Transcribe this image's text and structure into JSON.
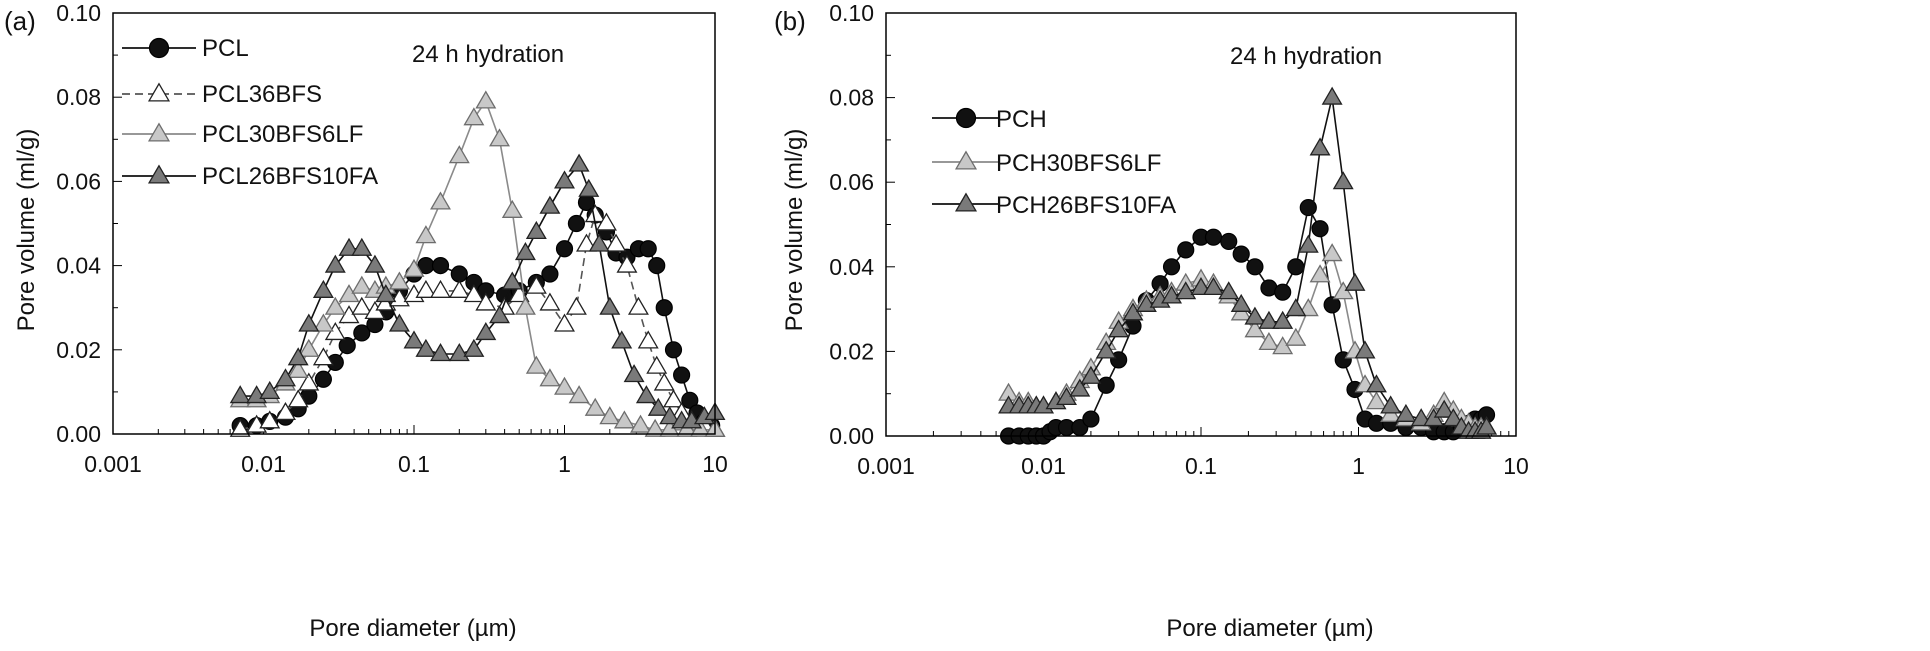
{
  "chart_data": [
    {
      "panel_label": "(a)",
      "type": "line",
      "xlabel": "Pore diameter (µm)",
      "ylabel": "Pore volume (ml/g)",
      "xscale": "log",
      "xlim": [
        0.001,
        10
      ],
      "ylim": [
        0,
        0.1
      ],
      "xticks": [
        "0.001",
        "0.01",
        "0.1",
        "1",
        "10"
      ],
      "yticks": [
        "0.00",
        "0.02",
        "0.04",
        "0.06",
        "0.08",
        "0.10"
      ],
      "annotation": "24 h hydration",
      "legend_position": "top-left",
      "series": [
        {
          "name": "PCL",
          "marker": "circle",
          "line": "solid",
          "line_color": "#111111",
          "fill": "#111111",
          "x": [
            0.007,
            0.009,
            0.011,
            0.014,
            0.017,
            0.02,
            0.025,
            0.03,
            0.036,
            0.045,
            0.055,
            0.065,
            0.08,
            0.1,
            0.12,
            0.15,
            0.2,
            0.25,
            0.3,
            0.4,
            0.5,
            0.65,
            0.8,
            1.0,
            1.2,
            1.4,
            1.6,
            1.9,
            2.2,
            2.6,
            3.1,
            3.6,
            4.1,
            4.6,
            5.3,
            6.0,
            6.8,
            7.6,
            8.5,
            9.5
          ],
          "y": [
            0.002,
            0.002,
            0.003,
            0.004,
            0.006,
            0.009,
            0.013,
            0.017,
            0.021,
            0.024,
            0.026,
            0.029,
            0.034,
            0.038,
            0.04,
            0.04,
            0.038,
            0.036,
            0.034,
            0.033,
            0.034,
            0.036,
            0.038,
            0.044,
            0.05,
            0.055,
            0.052,
            0.048,
            0.043,
            0.042,
            0.044,
            0.044,
            0.04,
            0.03,
            0.02,
            0.014,
            0.008,
            0.005,
            0.003,
            0.002
          ]
        },
        {
          "name": "PCL36BFS",
          "marker": "triangle",
          "line": "dashed",
          "line_color": "#555555",
          "fill": "#ffffff",
          "x": [
            0.007,
            0.009,
            0.011,
            0.014,
            0.017,
            0.02,
            0.025,
            0.03,
            0.037,
            0.045,
            0.055,
            0.065,
            0.08,
            0.1,
            0.12,
            0.15,
            0.2,
            0.25,
            0.3,
            0.4,
            0.5,
            0.65,
            0.8,
            1.0,
            1.2,
            1.4,
            1.6,
            1.9,
            2.2,
            2.6,
            3.1,
            3.6,
            4.1,
            4.6,
            5.3,
            6.0,
            7.0,
            8.5,
            10.0
          ],
          "y": [
            0.001,
            0.002,
            0.003,
            0.005,
            0.008,
            0.012,
            0.018,
            0.024,
            0.028,
            0.03,
            0.029,
            0.031,
            0.032,
            0.033,
            0.034,
            0.034,
            0.034,
            0.033,
            0.031,
            0.03,
            0.033,
            0.035,
            0.031,
            0.026,
            0.03,
            0.045,
            0.052,
            0.05,
            0.045,
            0.04,
            0.03,
            0.022,
            0.016,
            0.012,
            0.008,
            0.005,
            0.003,
            0.002,
            0.001
          ]
        },
        {
          "name": "PCL30BFS6LF",
          "marker": "triangle",
          "line": "solid",
          "line_color": "#8a8a8a",
          "fill": "#c8c8c8",
          "x": [
            0.007,
            0.009,
            0.011,
            0.014,
            0.017,
            0.02,
            0.025,
            0.03,
            0.037,
            0.045,
            0.055,
            0.065,
            0.08,
            0.1,
            0.12,
            0.15,
            0.2,
            0.25,
            0.3,
            0.37,
            0.45,
            0.55,
            0.65,
            0.8,
            1.0,
            1.25,
            1.6,
            2.0,
            2.5,
            3.2,
            4.0,
            5.0,
            6.5,
            8.0,
            10.0
          ],
          "y": [
            0.008,
            0.008,
            0.009,
            0.012,
            0.015,
            0.02,
            0.026,
            0.03,
            0.033,
            0.035,
            0.034,
            0.035,
            0.036,
            0.039,
            0.047,
            0.055,
            0.066,
            0.075,
            0.079,
            0.07,
            0.053,
            0.03,
            0.016,
            0.013,
            0.011,
            0.009,
            0.006,
            0.004,
            0.003,
            0.002,
            0.001,
            0.001,
            0.001,
            0.001,
            0.001
          ]
        },
        {
          "name": "PCL26BFS10FA",
          "marker": "triangle",
          "line": "solid",
          "line_color": "#111111",
          "fill": "#7a7a7a",
          "x": [
            0.007,
            0.009,
            0.011,
            0.014,
            0.017,
            0.02,
            0.025,
            0.03,
            0.037,
            0.045,
            0.055,
            0.065,
            0.08,
            0.1,
            0.12,
            0.15,
            0.2,
            0.25,
            0.3,
            0.37,
            0.45,
            0.55,
            0.65,
            0.8,
            1.0,
            1.25,
            1.45,
            1.7,
            2.0,
            2.4,
            2.9,
            3.5,
            4.2,
            5.0,
            6.0,
            7.0,
            8.5,
            10.0
          ],
          "y": [
            0.009,
            0.009,
            0.01,
            0.013,
            0.018,
            0.026,
            0.034,
            0.04,
            0.044,
            0.044,
            0.04,
            0.033,
            0.026,
            0.022,
            0.02,
            0.019,
            0.019,
            0.02,
            0.024,
            0.028,
            0.036,
            0.043,
            0.048,
            0.054,
            0.06,
            0.064,
            0.058,
            0.045,
            0.03,
            0.022,
            0.014,
            0.009,
            0.006,
            0.004,
            0.003,
            0.003,
            0.004,
            0.005
          ]
        }
      ]
    },
    {
      "panel_label": "(b)",
      "type": "line",
      "xlabel": "Pore diameter (µm)",
      "ylabel": "Pore volume (ml/g)",
      "xscale": "log",
      "xlim": [
        0.001,
        10
      ],
      "ylim": [
        0,
        0.1
      ],
      "xticks": [
        "0.001",
        "0.01",
        "0.1",
        "1",
        "10"
      ],
      "yticks": [
        "0.00",
        "0.02",
        "0.04",
        "0.06",
        "0.08",
        "0.10"
      ],
      "annotation": "24 h hydration",
      "legend_position": "top-left",
      "series": [
        {
          "name": "PCH",
          "marker": "circle",
          "line": "solid",
          "line_color": "#111111",
          "fill": "#111111",
          "x": [
            0.006,
            0.007,
            0.008,
            0.009,
            0.01,
            0.011,
            0.012,
            0.014,
            0.017,
            0.02,
            0.025,
            0.03,
            0.037,
            0.045,
            0.055,
            0.065,
            0.08,
            0.1,
            0.12,
            0.15,
            0.18,
            0.22,
            0.27,
            0.33,
            0.4,
            0.48,
            0.57,
            0.68,
            0.8,
            0.95,
            1.1,
            1.3,
            1.6,
            2.0,
            2.5,
            3.0,
            3.5,
            4.0,
            4.5,
            5.0,
            5.5,
            6.0,
            6.5
          ],
          "y": [
            0.0,
            0.0,
            0.0,
            0.0,
            0.0,
            0.001,
            0.002,
            0.002,
            0.002,
            0.004,
            0.012,
            0.018,
            0.026,
            0.032,
            0.036,
            0.04,
            0.044,
            0.047,
            0.047,
            0.046,
            0.043,
            0.04,
            0.035,
            0.034,
            0.04,
            0.054,
            0.049,
            0.031,
            0.018,
            0.011,
            0.004,
            0.003,
            0.003,
            0.002,
            0.002,
            0.001,
            0.001,
            0.001,
            0.002,
            0.003,
            0.004,
            0.004,
            0.005
          ]
        },
        {
          "name": "PCH30BFS6LF",
          "marker": "triangle",
          "line": "solid",
          "line_color": "#8a8a8a",
          "fill": "#c8c8c8",
          "x": [
            0.006,
            0.007,
            0.008,
            0.009,
            0.01,
            0.012,
            0.014,
            0.017,
            0.02,
            0.025,
            0.03,
            0.037,
            0.045,
            0.055,
            0.065,
            0.08,
            0.1,
            0.12,
            0.15,
            0.18,
            0.22,
            0.27,
            0.33,
            0.4,
            0.48,
            0.57,
            0.68,
            0.8,
            0.95,
            1.1,
            1.3,
            1.6,
            2.0,
            2.5,
            3.0,
            3.5,
            4.0,
            4.5,
            5.0,
            5.5,
            6.0,
            6.5
          ],
          "y": [
            0.01,
            0.008,
            0.008,
            0.007,
            0.007,
            0.008,
            0.01,
            0.013,
            0.016,
            0.022,
            0.027,
            0.03,
            0.032,
            0.033,
            0.034,
            0.036,
            0.037,
            0.036,
            0.033,
            0.029,
            0.025,
            0.022,
            0.021,
            0.023,
            0.03,
            0.038,
            0.043,
            0.034,
            0.02,
            0.012,
            0.008,
            0.005,
            0.004,
            0.003,
            0.005,
            0.008,
            0.006,
            0.004,
            0.003,
            0.002,
            0.002,
            0.002
          ]
        },
        {
          "name": "PCH26BFS10FA",
          "marker": "triangle",
          "line": "solid",
          "line_color": "#111111",
          "fill": "#7a7a7a",
          "x": [
            0.006,
            0.007,
            0.008,
            0.009,
            0.01,
            0.012,
            0.014,
            0.017,
            0.02,
            0.025,
            0.03,
            0.037,
            0.045,
            0.055,
            0.065,
            0.08,
            0.1,
            0.12,
            0.15,
            0.18,
            0.22,
            0.27,
            0.33,
            0.4,
            0.48,
            0.57,
            0.68,
            0.8,
            0.95,
            1.1,
            1.3,
            1.6,
            2.0,
            2.5,
            3.0,
            3.5,
            4.0,
            4.5,
            5.0,
            5.5,
            6.0,
            6.5
          ],
          "y": [
            0.007,
            0.007,
            0.007,
            0.007,
            0.007,
            0.008,
            0.009,
            0.011,
            0.014,
            0.02,
            0.025,
            0.029,
            0.031,
            0.032,
            0.033,
            0.034,
            0.035,
            0.035,
            0.034,
            0.031,
            0.028,
            0.027,
            0.027,
            0.03,
            0.045,
            0.068,
            0.08,
            0.06,
            0.036,
            0.02,
            0.012,
            0.007,
            0.005,
            0.004,
            0.004,
            0.006,
            0.004,
            0.002,
            0.001,
            0.001,
            0.001,
            0.002
          ]
        }
      ]
    }
  ]
}
